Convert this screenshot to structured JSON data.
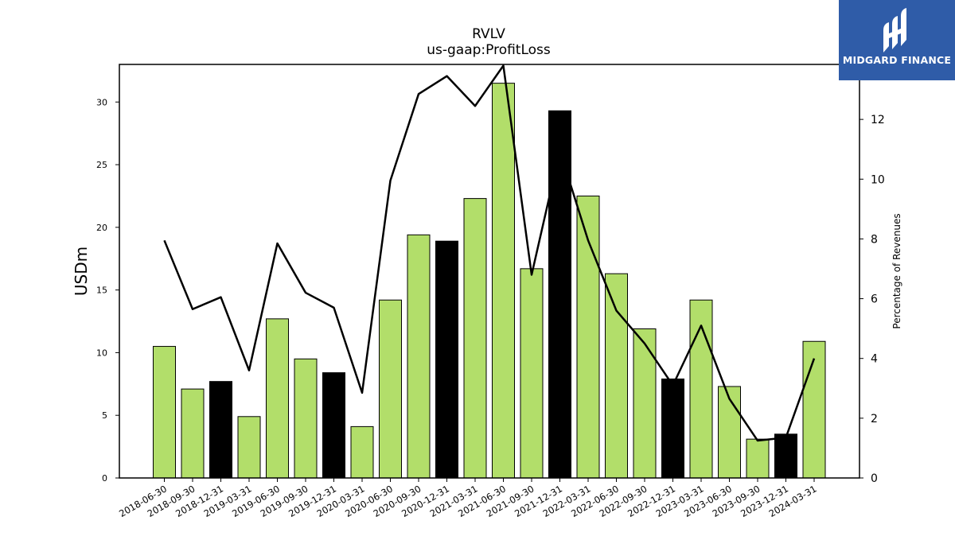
{
  "colors": {
    "bar_fill": "#b2de6a",
    "bar_highlight": "#000000",
    "line": "#000000",
    "logo_bg": "#2f5ca8",
    "logo_fg": "#ffffff"
  },
  "logo": {
    "text": "MIDGARD FINANCE",
    "icon": "midgard-logo-icon"
  },
  "chart_data": {
    "type": "bar",
    "title": "RVLV",
    "subtitle": "us-gaap:ProfitLoss",
    "ylabel": "USDm",
    "y2label": "Percentage of Revenues",
    "ylim": [
      0,
      33
    ],
    "y2lim": [
      0,
      13.84
    ],
    "yticks": [
      0,
      5,
      10,
      15,
      20,
      25,
      30
    ],
    "y2ticks": [
      0,
      2,
      4,
      6,
      8,
      10,
      12
    ],
    "grid": false,
    "categories": [
      "2018-06-30",
      "2018-09-30",
      "2018-12-31",
      "2019-03-31",
      "2019-06-30",
      "2019-09-30",
      "2019-12-31",
      "2020-03-31",
      "2020-06-30",
      "2020-09-30",
      "2020-12-31",
      "2021-03-31",
      "2021-06-30",
      "2021-09-30",
      "2021-12-31",
      "2022-03-31",
      "2022-06-30",
      "2022-09-30",
      "2022-12-31",
      "2023-03-31",
      "2023-06-30",
      "2023-09-30",
      "2023-12-31",
      "2024-03-31"
    ],
    "series": [
      {
        "kind": "bar",
        "axis": "left",
        "values": [
          10.5,
          7.1,
          7.7,
          4.9,
          12.7,
          9.5,
          8.4,
          4.1,
          14.2,
          19.4,
          18.9,
          22.3,
          31.5,
          16.7,
          29.3,
          22.5,
          16.3,
          11.9,
          7.9,
          14.2,
          7.3,
          3.1,
          3.5,
          10.9
        ],
        "highlight": [
          false,
          false,
          true,
          false,
          false,
          false,
          true,
          false,
          false,
          false,
          true,
          false,
          false,
          false,
          true,
          false,
          false,
          false,
          true,
          false,
          false,
          false,
          true,
          false
        ]
      },
      {
        "kind": "line",
        "axis": "right",
        "values": [
          7.95,
          5.65,
          6.05,
          3.6,
          7.85,
          6.2,
          5.7,
          2.85,
          9.95,
          12.85,
          13.45,
          12.45,
          13.8,
          6.8,
          10.95,
          7.95,
          5.6,
          4.5,
          3.1,
          5.1,
          2.65,
          1.25,
          1.35,
          4.0
        ]
      }
    ]
  }
}
